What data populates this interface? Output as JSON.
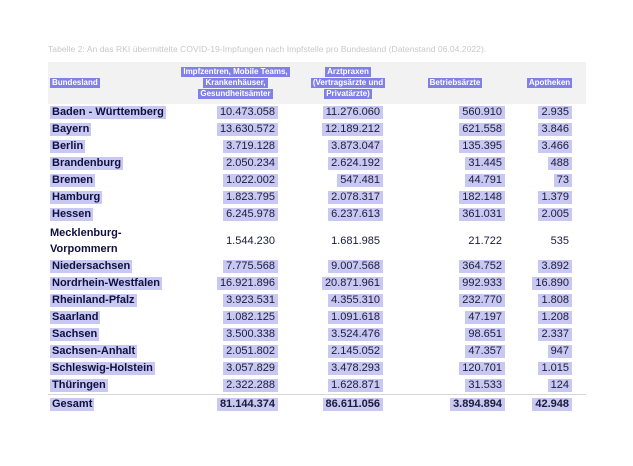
{
  "caption": "Tabelle 2: An das RKI übermittelte COVID-19-Impfungen nach Impfstelle pro Bundesland (Datenstand 06.04.2022).",
  "headers": {
    "col0": "Bundesland",
    "col1": [
      "Impfzentren, Mobile Teams,",
      "Krankenhäuser,",
      "Gesundheitsämter"
    ],
    "col2": [
      "Arztpraxen",
      "(Vertragsärzte und",
      "Privatärzte)"
    ],
    "col3": "Betriebsärzte",
    "col4": "Apotheken"
  },
  "rows": [
    {
      "land": "Baden - Württemberg",
      "impfzentren": "10.473.058",
      "arztpraxen": "11.276.060",
      "betriebsaerzte": "560.910",
      "apotheken": "2.935"
    },
    {
      "land": "Bayern",
      "impfzentren": "13.630.572",
      "arztpraxen": "12.189.212",
      "betriebsaerzte": "621.558",
      "apotheken": "3.846"
    },
    {
      "land": "Berlin",
      "impfzentren": "3.719.128",
      "arztpraxen": "3.873.047",
      "betriebsaerzte": "135.395",
      "apotheken": "3.466"
    },
    {
      "land": "Brandenburg",
      "impfzentren": "2.050.234",
      "arztpraxen": "2.624.192",
      "betriebsaerzte": "31.445",
      "apotheken": "488"
    },
    {
      "land": "Bremen",
      "impfzentren": "1.022.002",
      "arztpraxen": "547.481",
      "betriebsaerzte": "44.791",
      "apotheken": "73"
    },
    {
      "land": "Hamburg",
      "impfzentren": "1.823.795",
      "arztpraxen": "2.078.317",
      "betriebsaerzte": "182.148",
      "apotheken": "1.379"
    },
    {
      "land": "Hessen",
      "impfzentren": "6.245.978",
      "arztpraxen": "6.237.613",
      "betriebsaerzte": "361.031",
      "apotheken": "2.005"
    },
    {
      "land": "Mecklenburg-Vorpommern",
      "land_lines": [
        "Mecklenburg-",
        "Vorpommern"
      ],
      "impfzentren": "1.544.230",
      "arztpraxen": "1.681.985",
      "betriebsaerzte": "21.722",
      "apotheken": "535"
    },
    {
      "land": "Niedersachsen",
      "impfzentren": "7.775.568",
      "arztpraxen": "9.007.568",
      "betriebsaerzte": "364.752",
      "apotheken": "3.892"
    },
    {
      "land": "Nordrhein-Westfalen",
      "impfzentren": "16.921.896",
      "arztpraxen": "20.871.961",
      "betriebsaerzte": "992.933",
      "apotheken": "16.890"
    },
    {
      "land": "Rheinland-Pfalz",
      "impfzentren": "3.923.531",
      "arztpraxen": "4.355.310",
      "betriebsaerzte": "232.770",
      "apotheken": "1.808"
    },
    {
      "land": "Saarland",
      "impfzentren": "1.082.125",
      "arztpraxen": "1.091.618",
      "betriebsaerzte": "47.197",
      "apotheken": "1.208"
    },
    {
      "land": "Sachsen",
      "impfzentren": "3.500.338",
      "arztpraxen": "3.524.476",
      "betriebsaerzte": "98.651",
      "apotheken": "2.337"
    },
    {
      "land": "Sachsen-Anhalt",
      "impfzentren": "2.051.802",
      "arztpraxen": "2.145.052",
      "betriebsaerzte": "47.357",
      "apotheken": "947"
    },
    {
      "land": "Schleswig-Holstein",
      "impfzentren": "3.057.829",
      "arztpraxen": "3.478.293",
      "betriebsaerzte": "120.701",
      "apotheken": "1.015"
    },
    {
      "land": "Thüringen",
      "impfzentren": "2.322.288",
      "arztpraxen": "1.628.871",
      "betriebsaerzte": "31.533",
      "apotheken": "124"
    }
  ],
  "total": {
    "land": "Gesamt",
    "impfzentren": "81.144.374",
    "arztpraxen": "86.611.056",
    "betriebsaerzte": "3.894.894",
    "apotheken": "42.948"
  },
  "colors": {
    "header_bg": "#f2f2f2",
    "header_label": "#8080e6",
    "cell_highlight": "#c8c8f2",
    "text": "#101040"
  }
}
